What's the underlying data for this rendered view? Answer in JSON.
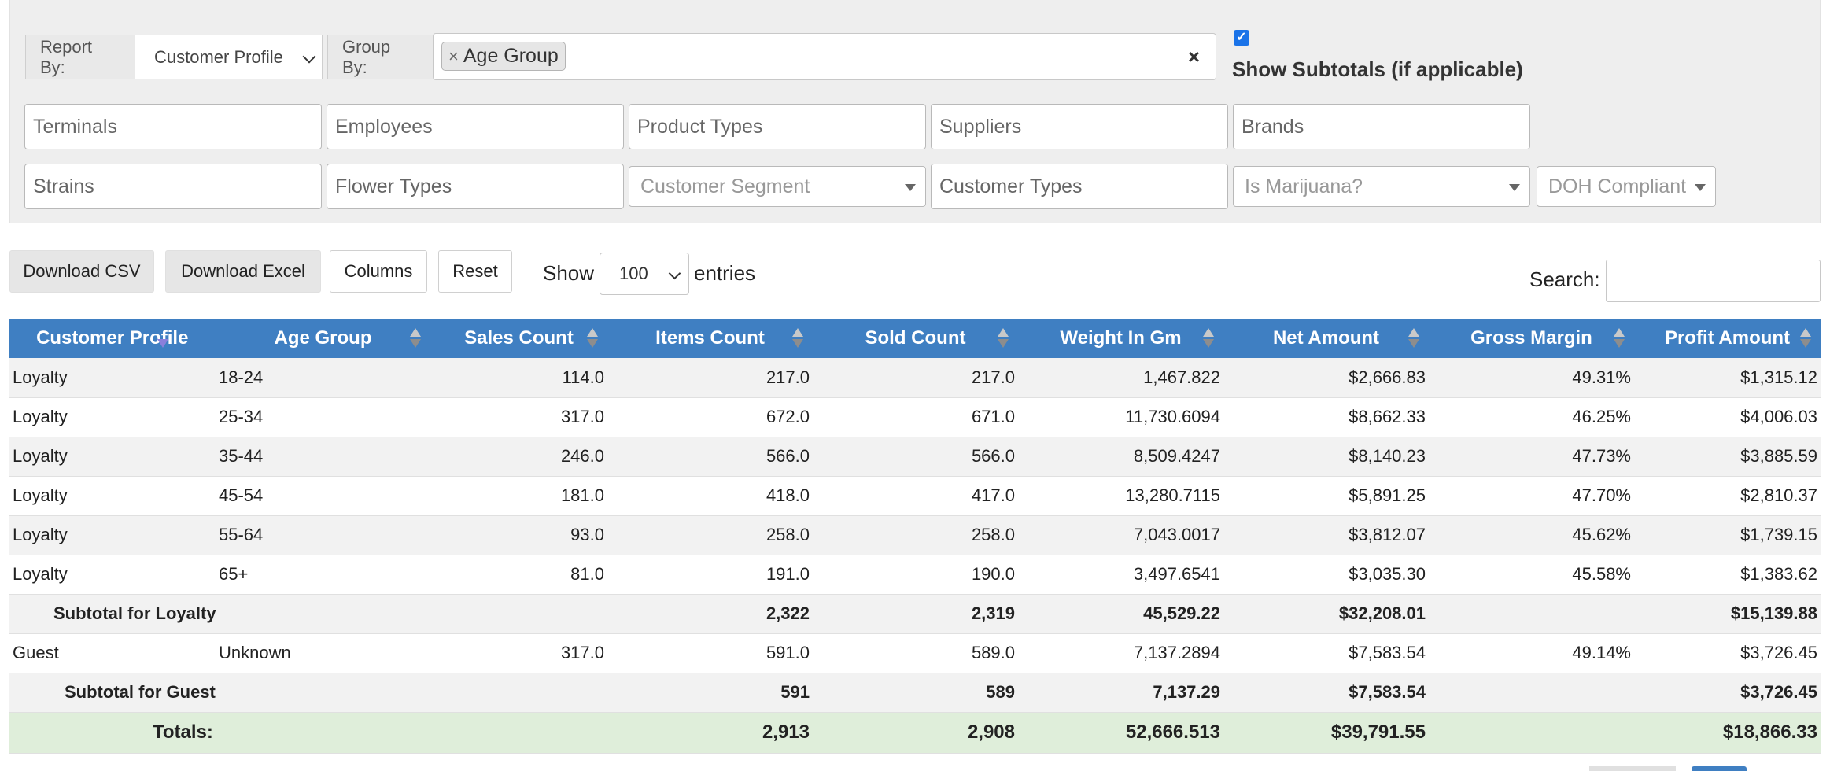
{
  "filters": {
    "report_by_label": "Report By:",
    "report_by_value": "Customer Profile",
    "group_by_label": "Group By:",
    "group_by_tag": "Age Group",
    "clear_symbol": "×",
    "tag_remove_symbol": "×",
    "show_subtotals_label": "Show Subtotals (if applicable)",
    "show_subtotals_checked": true,
    "row1": [
      "Terminals",
      "Employees",
      "Product Types",
      "Suppliers",
      "Brands"
    ],
    "row2_inputs": [
      "Strains",
      "Flower Types",
      "Customer Types"
    ],
    "row2_dropdowns": [
      "Customer Segment",
      "Is Marijuana?",
      "DOH Compliant"
    ]
  },
  "toolbar": {
    "download_csv": "Download CSV",
    "download_excel": "Download Excel",
    "columns": "Columns",
    "reset": "Reset",
    "show_label": "Show",
    "entries_value": "100",
    "entries_label": "entries",
    "search_label": "Search:"
  },
  "table": {
    "headers": [
      "Customer Profile",
      "Age Group",
      "Sales Count",
      "Items Count",
      "Sold Count",
      "Weight In Gm",
      "Net Amount",
      "Gross Margin",
      "Profit Amount"
    ],
    "rows": [
      {
        "type": "data",
        "cells": [
          "Loyalty",
          "18-24",
          "114.0",
          "217.0",
          "217.0",
          "1,467.822",
          "$2,666.83",
          "49.31%",
          "$1,315.12"
        ]
      },
      {
        "type": "data",
        "cells": [
          "Loyalty",
          "25-34",
          "317.0",
          "672.0",
          "671.0",
          "11,730.6094",
          "$8,662.33",
          "46.25%",
          "$4,006.03"
        ]
      },
      {
        "type": "data",
        "cells": [
          "Loyalty",
          "35-44",
          "246.0",
          "566.0",
          "566.0",
          "8,509.4247",
          "$8,140.23",
          "47.73%",
          "$3,885.59"
        ]
      },
      {
        "type": "data",
        "cells": [
          "Loyalty",
          "45-54",
          "181.0",
          "418.0",
          "417.0",
          "13,280.7115",
          "$5,891.25",
          "47.70%",
          "$2,810.37"
        ]
      },
      {
        "type": "data",
        "cells": [
          "Loyalty",
          "55-64",
          "93.0",
          "258.0",
          "258.0",
          "7,043.0017",
          "$3,812.07",
          "45.62%",
          "$1,739.15"
        ]
      },
      {
        "type": "data",
        "cells": [
          "Loyalty",
          "65+",
          "81.0",
          "191.0",
          "190.0",
          "3,497.6541",
          "$3,035.30",
          "45.58%",
          "$1,383.62"
        ]
      },
      {
        "type": "subtotal",
        "label": "Subtotal for Loyalty",
        "cells": [
          "",
          "2,322",
          "2,319",
          "45,529.22",
          "$32,208.01",
          "",
          "$15,139.88"
        ]
      },
      {
        "type": "data",
        "cells": [
          "Guest",
          "Unknown",
          "317.0",
          "591.0",
          "589.0",
          "7,137.2894",
          "$7,583.54",
          "49.14%",
          "$3,726.45"
        ]
      },
      {
        "type": "subtotal",
        "label": "Subtotal for Guest",
        "cells": [
          "",
          "591",
          "589",
          "7,137.29",
          "$7,583.54",
          "",
          "$3,726.45"
        ]
      }
    ],
    "totals": {
      "label": "Totals:",
      "cells": [
        "",
        "2,913",
        "2,908",
        "52,666.513",
        "$39,791.55",
        "",
        "$18,866.33"
      ]
    }
  },
  "colors": {
    "header_bg": "#3f7fc2",
    "totals_bg": "#dfeeda",
    "panel_bg": "#eeeeee"
  }
}
